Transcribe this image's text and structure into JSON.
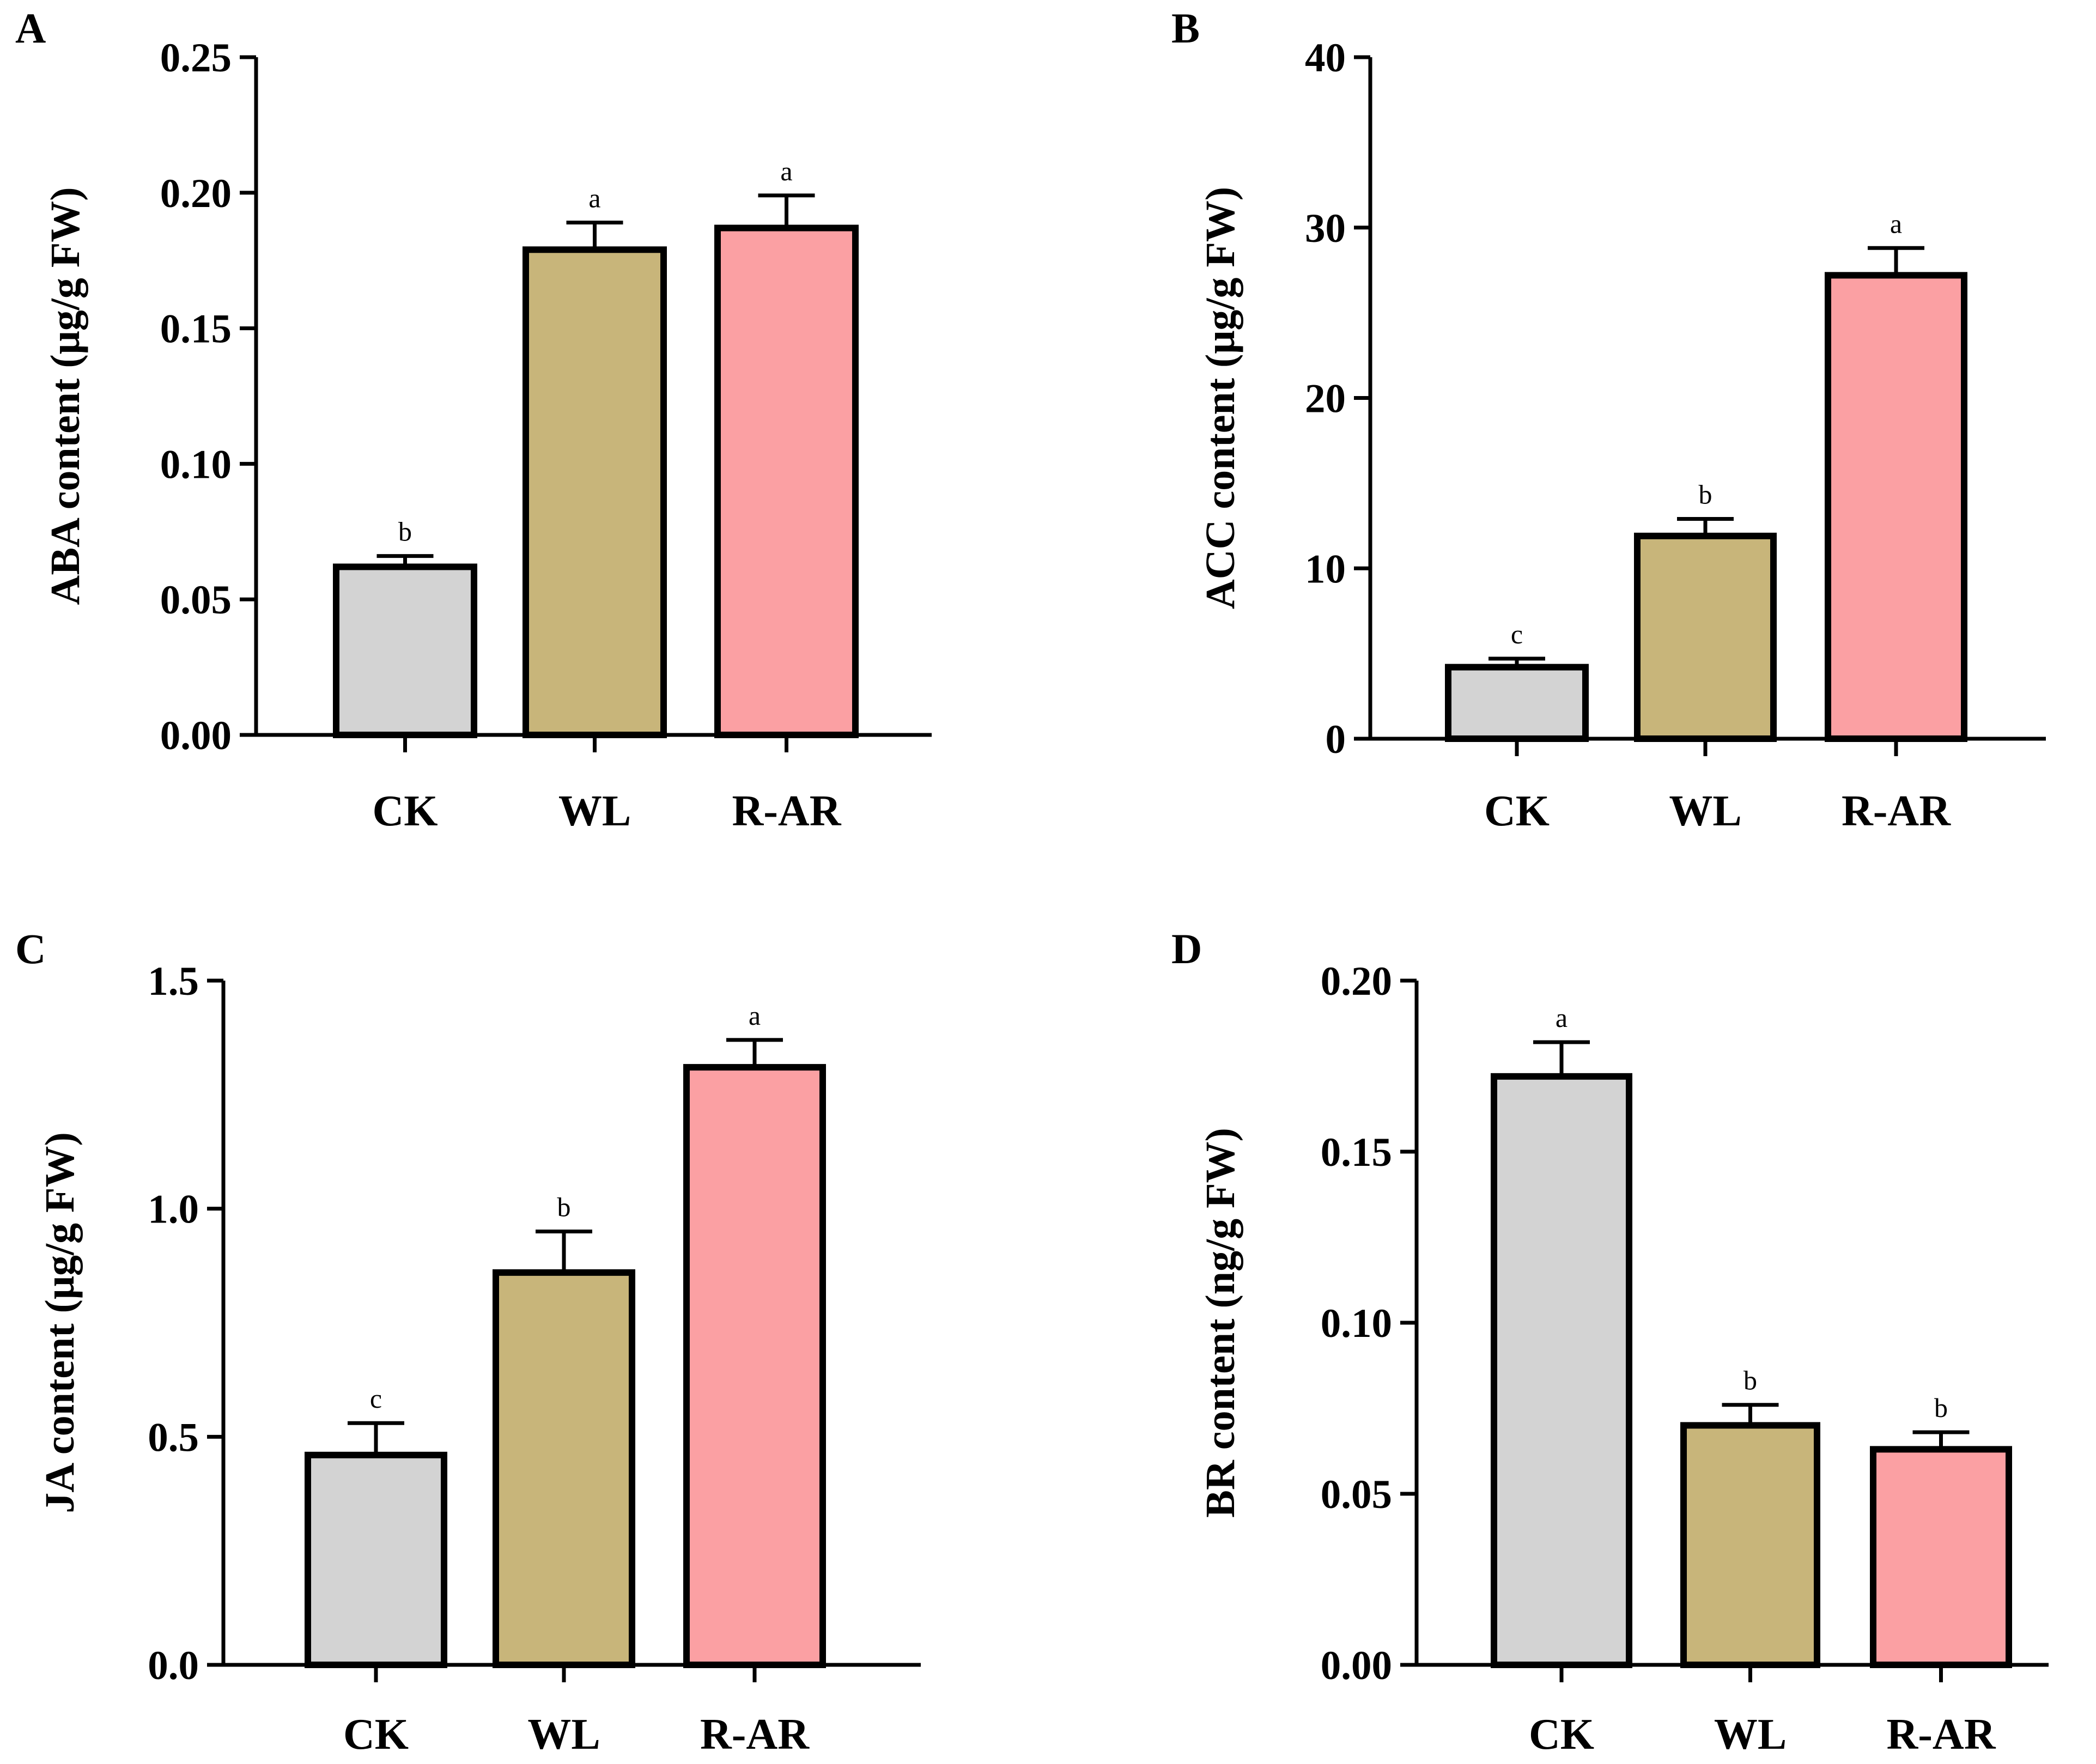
{
  "chart_data": [
    {
      "panel": "A",
      "type": "bar",
      "categories": [
        "CK",
        "WL",
        "R-AR"
      ],
      "values": [
        0.062,
        0.179,
        0.187
      ],
      "errors": [
        0.004,
        0.01,
        0.012
      ],
      "significance": [
        "b",
        "a",
        "a"
      ],
      "ylabel": "ABA content (μg/g FW)",
      "ylim": [
        0,
        0.25
      ],
      "yticks": [
        "0.00",
        "0.05",
        "0.10",
        "0.15",
        "0.20",
        "0.25"
      ],
      "grid": false,
      "legend": "none",
      "colors": [
        "#d3d3d3",
        "#c8b57a",
        "#fba0a3"
      ]
    },
    {
      "panel": "B",
      "type": "bar",
      "categories": [
        "CK",
        "WL",
        "R-AR"
      ],
      "values": [
        4.2,
        11.9,
        27.2
      ],
      "errors": [
        0.5,
        1.0,
        1.6
      ],
      "significance": [
        "c",
        "b",
        "a"
      ],
      "ylabel": "ACC content (μg/g FW)",
      "ylim": [
        0,
        40
      ],
      "yticks": [
        "0",
        "10",
        "20",
        "30",
        "40"
      ],
      "grid": false,
      "legend": "none",
      "colors": [
        "#d3d3d3",
        "#c8b57a",
        "#fba0a3"
      ]
    },
    {
      "panel": "C",
      "type": "bar",
      "categories": [
        "CK",
        "WL",
        "R-AR"
      ],
      "values": [
        0.46,
        0.86,
        1.31
      ],
      "errors": [
        0.07,
        0.09,
        0.06
      ],
      "significance": [
        "c",
        "b",
        "a"
      ],
      "ylabel": "JA content (μg/g FW)",
      "ylim": [
        0,
        1.5
      ],
      "yticks": [
        "0.0",
        "0.5",
        "1.0",
        "1.5"
      ],
      "grid": false,
      "legend": "none",
      "colors": [
        "#d3d3d3",
        "#c8b57a",
        "#fba0a3"
      ]
    },
    {
      "panel": "D",
      "type": "bar",
      "categories": [
        "CK",
        "WL",
        "R-AR"
      ],
      "values": [
        0.172,
        0.07,
        0.063
      ],
      "errors": [
        0.01,
        0.006,
        0.005
      ],
      "significance": [
        "a",
        "b",
        "b"
      ],
      "ylabel": "BR content (ng/g FW)",
      "ylim": [
        0,
        0.2
      ],
      "yticks": [
        "0.00",
        "0.05",
        "0.10",
        "0.15",
        "0.20"
      ],
      "grid": false,
      "legend": "none",
      "colors": [
        "#d3d3d3",
        "#c8b57a",
        "#fba0a3"
      ]
    }
  ]
}
